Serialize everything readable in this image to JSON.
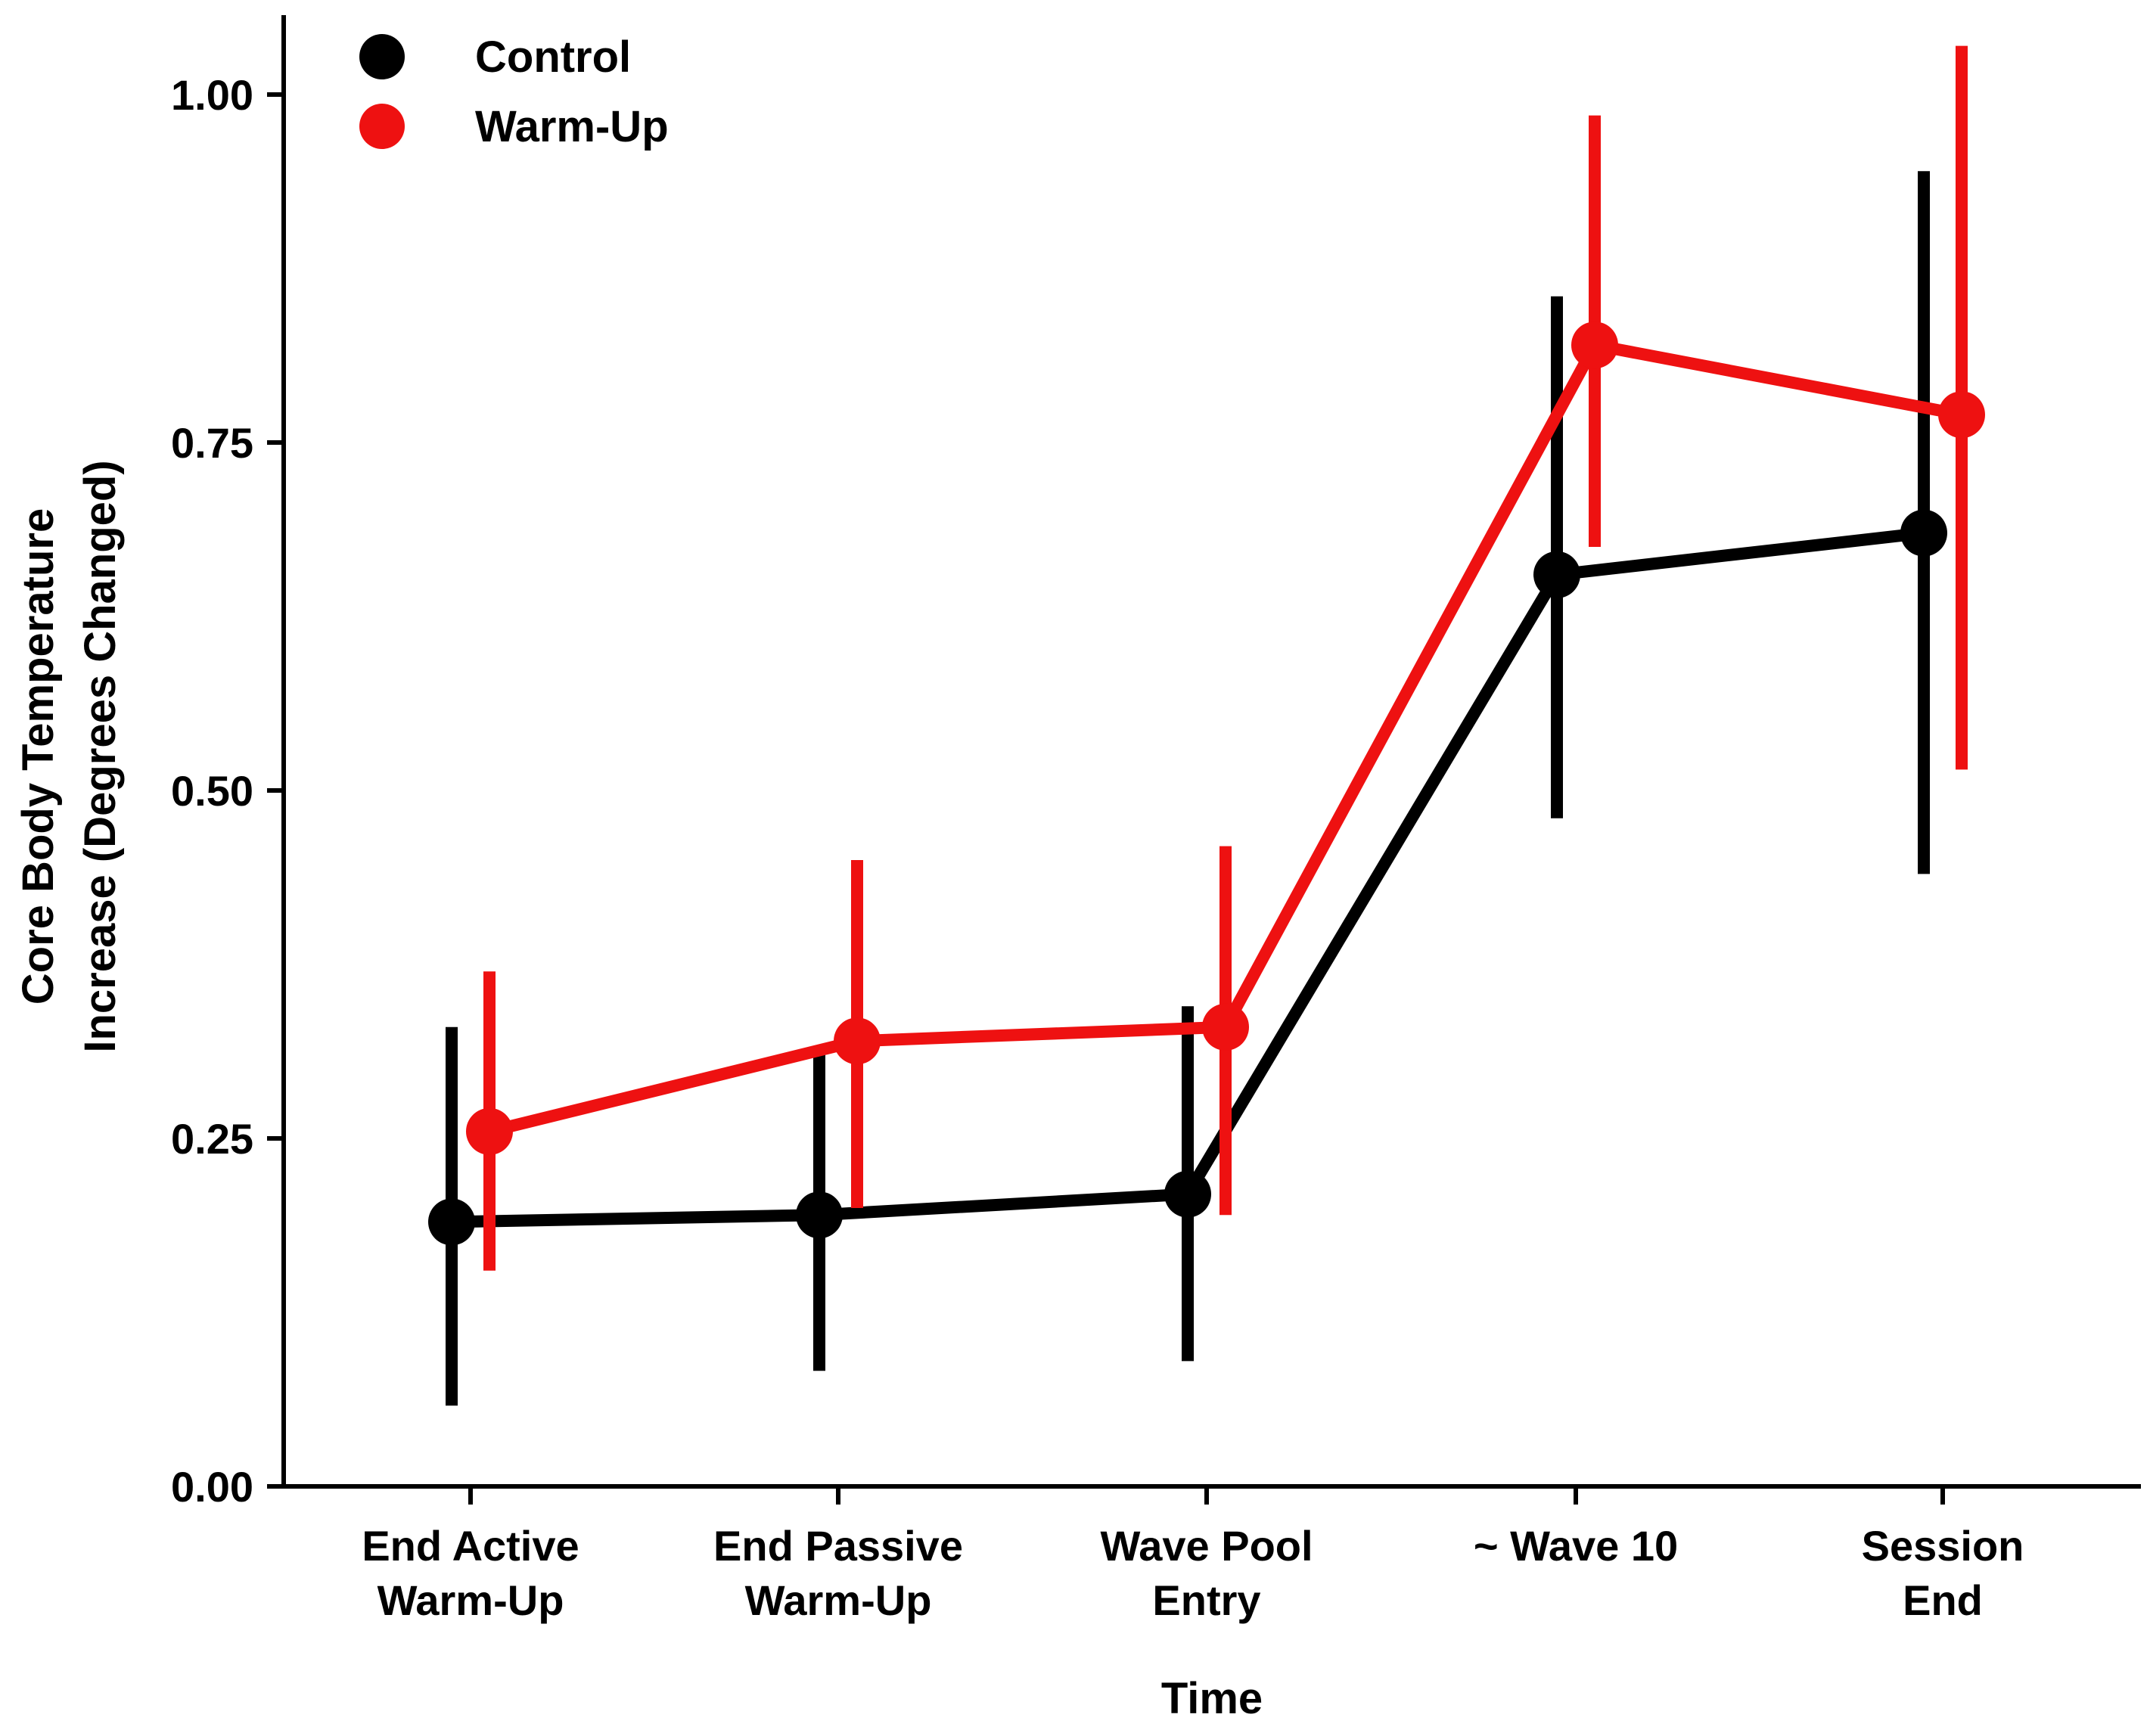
{
  "chart_data": {
    "type": "line",
    "categories": [
      [
        "End Active",
        "Warm-Up"
      ],
      [
        "End Passive",
        "Warm-Up"
      ],
      [
        "Wave Pool",
        "Entry"
      ],
      [
        "~ Wave 10"
      ],
      [
        "Session",
        "End"
      ]
    ],
    "series": [
      {
        "name": "Control",
        "color": "#000000",
        "values": [
          0.19,
          0.195,
          0.21,
          0.655,
          0.685
        ],
        "error_low": [
          0.058,
          0.083,
          0.09,
          0.48,
          0.44
        ],
        "error_high": [
          0.33,
          0.31,
          0.345,
          0.855,
          0.945
        ]
      },
      {
        "name": "Warm-Up",
        "color": "#ee1111",
        "values": [
          0.255,
          0.32,
          0.33,
          0.82,
          0.77
        ],
        "error_low": [
          0.155,
          0.2,
          0.195,
          0.675,
          0.515
        ],
        "error_high": [
          0.37,
          0.45,
          0.46,
          0.985,
          1.035
        ]
      }
    ],
    "xlabel": "Time",
    "ylabel": [
      "Core Body Temperature",
      "Increase (Degrees Changed)"
    ],
    "ylim": [
      0,
      1.05
    ],
    "yticks": [
      0,
      0.25,
      0.5,
      0.75,
      1.0
    ],
    "ytick_labels": [
      "0.00",
      "0.25",
      "0.50",
      "0.75",
      "1.00"
    ],
    "grid": false,
    "legend_position": "top-left"
  }
}
